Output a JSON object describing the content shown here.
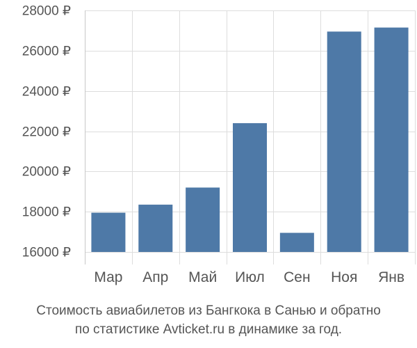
{
  "chart_data": {
    "type": "bar",
    "categories": [
      "Мар",
      "Апр",
      "Май",
      "Июл",
      "Сен",
      "Ноя",
      "Янв"
    ],
    "values": [
      17950,
      18350,
      19200,
      22400,
      16950,
      26950,
      27150
    ],
    "ylim": [
      16000,
      28000
    ],
    "yticks": [
      16000,
      18000,
      20000,
      22000,
      24000,
      26000,
      28000
    ],
    "ytick_labels": [
      "16000 ₽",
      "18000 ₽",
      "20000 ₽",
      "22000 ₽",
      "24000 ₽",
      "26000 ₽",
      "28000 ₽"
    ],
    "grid": true,
    "bar_color": "#4e79a7",
    "grid_color": "#dddddd",
    "axis_color": "#c8c8c8",
    "text_color": "#555555"
  },
  "caption": {
    "line1": "Стоимость авиабилетов из Бангкока в Санью и обратно",
    "line2": "по статистике Avticket.ru в динамике за год."
  }
}
